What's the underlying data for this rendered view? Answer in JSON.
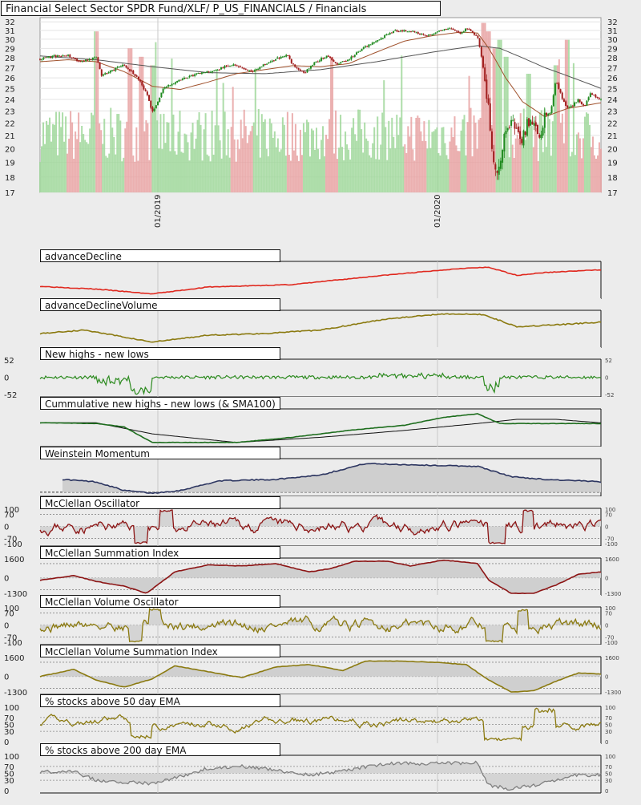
{
  "title": "Financial Select Sector SPDR Fund/XLF/ P_US_FINANCIALS / Financials",
  "colors": {
    "background": "#ececec",
    "up_candle": "#1f8a1f",
    "down_candle": "#a01d1d",
    "volume_up": "#9fd79a",
    "volume_down": "#e7a2a2",
    "sma_short": "#a0522d",
    "sma_long": "#555555",
    "ad_line": "#e0281e",
    "olive": "#8b7a10",
    "green": "#2b8a1e",
    "navy": "#2c3560",
    "dark_red": "#8c1414",
    "gray": "#808080"
  },
  "chart_data": [
    {
      "id": "price",
      "type": "candlestick",
      "title": "Financial Select Sector SPDR Fund/XLF/ P_US_FINANCIALS / Financials",
      "y_ticks": [
        "32",
        "31",
        "30",
        "29",
        "28",
        "27",
        "26",
        "25",
        "24",
        "23",
        "22",
        "21",
        "20",
        "19",
        "18",
        "17"
      ],
      "ylim": [
        17,
        32.5
      ],
      "scale": "log",
      "x_ticks": [
        "01/2019",
        "01/2020"
      ],
      "grid": true,
      "close_points": [
        {
          "x": 0.0,
          "y": 27.9
        },
        {
          "x": 0.03,
          "y": 28.2
        },
        {
          "x": 0.05,
          "y": 28.3
        },
        {
          "x": 0.07,
          "y": 27.5
        },
        {
          "x": 0.09,
          "y": 27.9
        },
        {
          "x": 0.1,
          "y": 28.1
        },
        {
          "x": 0.11,
          "y": 26.2
        },
        {
          "x": 0.13,
          "y": 26.8
        },
        {
          "x": 0.15,
          "y": 27.3
        },
        {
          "x": 0.17,
          "y": 26.2
        },
        {
          "x": 0.18,
          "y": 25.5
        },
        {
          "x": 0.19,
          "y": 24.5
        },
        {
          "x": 0.2,
          "y": 22.8
        },
        {
          "x": 0.21,
          "y": 23.8
        },
        {
          "x": 0.22,
          "y": 25.0
        },
        {
          "x": 0.24,
          "y": 25.6
        },
        {
          "x": 0.26,
          "y": 26.0
        },
        {
          "x": 0.28,
          "y": 26.4
        },
        {
          "x": 0.3,
          "y": 26.6
        },
        {
          "x": 0.32,
          "y": 26.9
        },
        {
          "x": 0.34,
          "y": 27.3
        },
        {
          "x": 0.36,
          "y": 27.0
        },
        {
          "x": 0.38,
          "y": 26.6
        },
        {
          "x": 0.4,
          "y": 27.3
        },
        {
          "x": 0.42,
          "y": 27.9
        },
        {
          "x": 0.44,
          "y": 28.3
        },
        {
          "x": 0.45,
          "y": 27.4
        },
        {
          "x": 0.47,
          "y": 26.4
        },
        {
          "x": 0.49,
          "y": 27.5
        },
        {
          "x": 0.51,
          "y": 28.2
        },
        {
          "x": 0.53,
          "y": 27.4
        },
        {
          "x": 0.55,
          "y": 27.8
        },
        {
          "x": 0.57,
          "y": 28.8
        },
        {
          "x": 0.59,
          "y": 29.5
        },
        {
          "x": 0.61,
          "y": 30.2
        },
        {
          "x": 0.63,
          "y": 30.9
        },
        {
          "x": 0.65,
          "y": 31.0
        },
        {
          "x": 0.67,
          "y": 30.8
        },
        {
          "x": 0.69,
          "y": 30.4
        },
        {
          "x": 0.71,
          "y": 30.9
        },
        {
          "x": 0.73,
          "y": 31.2
        },
        {
          "x": 0.75,
          "y": 30.6
        },
        {
          "x": 0.76,
          "y": 31.3
        },
        {
          "x": 0.78,
          "y": 30.3
        },
        {
          "x": 0.79,
          "y": 27.0
        },
        {
          "x": 0.8,
          "y": 23.0
        },
        {
          "x": 0.81,
          "y": 18.2
        },
        {
          "x": 0.82,
          "y": 19.2
        },
        {
          "x": 0.83,
          "y": 21.2
        },
        {
          "x": 0.84,
          "y": 22.3
        },
        {
          "x": 0.85,
          "y": 21.2
        },
        {
          "x": 0.86,
          "y": 20.8
        },
        {
          "x": 0.87,
          "y": 22.1
        },
        {
          "x": 0.88,
          "y": 22.2
        },
        {
          "x": 0.89,
          "y": 21.0
        },
        {
          "x": 0.9,
          "y": 22.5
        },
        {
          "x": 0.91,
          "y": 22.8
        },
        {
          "x": 0.92,
          "y": 25.8
        },
        {
          "x": 0.93,
          "y": 24.2
        },
        {
          "x": 0.94,
          "y": 23.2
        },
        {
          "x": 0.95,
          "y": 23.5
        },
        {
          "x": 0.96,
          "y": 24.0
        },
        {
          "x": 0.97,
          "y": 23.3
        },
        {
          "x": 0.98,
          "y": 24.5
        },
        {
          "x": 0.99,
          "y": 24.2
        },
        {
          "x": 1.0,
          "y": 24.0
        }
      ],
      "sma_short_points": [
        {
          "x": 0.0,
          "y": 27.6
        },
        {
          "x": 0.05,
          "y": 27.8
        },
        {
          "x": 0.1,
          "y": 27.6
        },
        {
          "x": 0.15,
          "y": 26.6
        },
        {
          "x": 0.2,
          "y": 25.2
        },
        {
          "x": 0.25,
          "y": 24.9
        },
        {
          "x": 0.3,
          "y": 25.6
        },
        {
          "x": 0.35,
          "y": 26.4
        },
        {
          "x": 0.4,
          "y": 26.8
        },
        {
          "x": 0.45,
          "y": 27.2
        },
        {
          "x": 0.5,
          "y": 27.1
        },
        {
          "x": 0.55,
          "y": 27.4
        },
        {
          "x": 0.6,
          "y": 28.6
        },
        {
          "x": 0.65,
          "y": 29.8
        },
        {
          "x": 0.7,
          "y": 30.4
        },
        {
          "x": 0.75,
          "y": 30.8
        },
        {
          "x": 0.78,
          "y": 30.7
        },
        {
          "x": 0.8,
          "y": 29.0
        },
        {
          "x": 0.83,
          "y": 26.0
        },
        {
          "x": 0.86,
          "y": 23.8
        },
        {
          "x": 0.9,
          "y": 22.5
        },
        {
          "x": 0.94,
          "y": 23.2
        },
        {
          "x": 1.0,
          "y": 23.7
        }
      ],
      "sma_long_points": [
        {
          "x": 0.0,
          "y": 28.2
        },
        {
          "x": 0.1,
          "y": 27.8
        },
        {
          "x": 0.2,
          "y": 27.1
        },
        {
          "x": 0.3,
          "y": 26.5
        },
        {
          "x": 0.4,
          "y": 26.4
        },
        {
          "x": 0.5,
          "y": 26.8
        },
        {
          "x": 0.6,
          "y": 27.6
        },
        {
          "x": 0.7,
          "y": 28.6
        },
        {
          "x": 0.78,
          "y": 29.3
        },
        {
          "x": 0.82,
          "y": 29.0
        },
        {
          "x": 0.86,
          "y": 28.0
        },
        {
          "x": 0.9,
          "y": 27.0
        },
        {
          "x": 0.95,
          "y": 26.0
        },
        {
          "x": 1.0,
          "y": 25.0
        }
      ],
      "volume_spikes": [
        {
          "x": 0.1,
          "h": 0.95
        },
        {
          "x": 0.16,
          "h": 0.85
        },
        {
          "x": 0.18,
          "h": 0.8
        },
        {
          "x": 0.2,
          "h": 0.75
        },
        {
          "x": 0.52,
          "h": 0.8
        },
        {
          "x": 0.79,
          "h": 1.0
        },
        {
          "x": 0.8,
          "h": 0.95
        },
        {
          "x": 0.81,
          "h": 0.85
        },
        {
          "x": 0.82,
          "h": 0.9
        },
        {
          "x": 0.83,
          "h": 0.8
        },
        {
          "x": 0.87,
          "h": 0.7
        },
        {
          "x": 0.92,
          "h": 0.75
        },
        {
          "x": 0.94,
          "h": 0.9
        }
      ]
    },
    {
      "id": "adl",
      "type": "line",
      "title": "advanceDecline",
      "color": "#e0281e",
      "ylim": [
        0,
        1
      ],
      "points": [
        {
          "x": 0,
          "y": 0.3
        },
        {
          "x": 0.1,
          "y": 0.22
        },
        {
          "x": 0.2,
          "y": 0.08
        },
        {
          "x": 0.3,
          "y": 0.28
        },
        {
          "x": 0.45,
          "y": 0.35
        },
        {
          "x": 0.6,
          "y": 0.6
        },
        {
          "x": 0.75,
          "y": 0.82
        },
        {
          "x": 0.8,
          "y": 0.85
        },
        {
          "x": 0.85,
          "y": 0.62
        },
        {
          "x": 0.9,
          "y": 0.7
        },
        {
          "x": 1.0,
          "y": 0.78
        }
      ]
    },
    {
      "id": "adv",
      "type": "line",
      "title": "advanceDeclineVolume",
      "color": "#8b7a10",
      "ylim": [
        0,
        1
      ],
      "points": [
        {
          "x": 0,
          "y": 0.35
        },
        {
          "x": 0.08,
          "y": 0.45
        },
        {
          "x": 0.2,
          "y": 0.1
        },
        {
          "x": 0.3,
          "y": 0.3
        },
        {
          "x": 0.4,
          "y": 0.35
        },
        {
          "x": 0.5,
          "y": 0.45
        },
        {
          "x": 0.62,
          "y": 0.78
        },
        {
          "x": 0.72,
          "y": 0.92
        },
        {
          "x": 0.79,
          "y": 0.9
        },
        {
          "x": 0.85,
          "y": 0.55
        },
        {
          "x": 0.92,
          "y": 0.6
        },
        {
          "x": 1.0,
          "y": 0.68
        }
      ]
    },
    {
      "id": "nhnl",
      "type": "line",
      "title": "New highs - new lows",
      "color": "#2b8a1e",
      "ylim": [
        -52,
        52
      ],
      "y_ticks_left": [
        "52",
        "0",
        "-52"
      ],
      "y_ticks_right": [
        "52",
        "0",
        "-52"
      ]
    },
    {
      "id": "cum",
      "type": "line",
      "title": "Cummulative new highs - new lows (& SMA100)",
      "color": "#1e6e1e",
      "sma_color": "#111111",
      "ylim": [
        0,
        1
      ],
      "points": [
        {
          "x": 0,
          "y": 0.62
        },
        {
          "x": 0.1,
          "y": 0.6
        },
        {
          "x": 0.15,
          "y": 0.5
        },
        {
          "x": 0.2,
          "y": 0.05
        },
        {
          "x": 0.35,
          "y": 0.05
        },
        {
          "x": 0.45,
          "y": 0.2
        },
        {
          "x": 0.55,
          "y": 0.4
        },
        {
          "x": 0.65,
          "y": 0.55
        },
        {
          "x": 0.72,
          "y": 0.78
        },
        {
          "x": 0.78,
          "y": 0.88
        },
        {
          "x": 0.82,
          "y": 0.6
        },
        {
          "x": 0.9,
          "y": 0.6
        },
        {
          "x": 1.0,
          "y": 0.6
        }
      ],
      "sma_points": [
        {
          "x": 0,
          "y": 0.62
        },
        {
          "x": 0.1,
          "y": 0.62
        },
        {
          "x": 0.2,
          "y": 0.3
        },
        {
          "x": 0.35,
          "y": 0.05
        },
        {
          "x": 0.5,
          "y": 0.2
        },
        {
          "x": 0.65,
          "y": 0.4
        },
        {
          "x": 0.78,
          "y": 0.6
        },
        {
          "x": 0.85,
          "y": 0.72
        },
        {
          "x": 0.92,
          "y": 0.72
        },
        {
          "x": 1.0,
          "y": 0.62
        }
      ]
    },
    {
      "id": "wm",
      "type": "area",
      "title": "Weinstein Momentum",
      "color": "#2c3560",
      "ylim": [
        0,
        1
      ],
      "points": [
        {
          "x": 0.04,
          "y": 0.42
        },
        {
          "x": 0.1,
          "y": 0.35
        },
        {
          "x": 0.15,
          "y": 0.1
        },
        {
          "x": 0.2,
          "y": 0.02
        },
        {
          "x": 0.25,
          "y": 0.1
        },
        {
          "x": 0.32,
          "y": 0.38
        },
        {
          "x": 0.42,
          "y": 0.42
        },
        {
          "x": 0.5,
          "y": 0.55
        },
        {
          "x": 0.58,
          "y": 0.88
        },
        {
          "x": 0.65,
          "y": 0.85
        },
        {
          "x": 0.72,
          "y": 0.82
        },
        {
          "x": 0.78,
          "y": 0.8
        },
        {
          "x": 0.84,
          "y": 0.5
        },
        {
          "x": 0.9,
          "y": 0.42
        },
        {
          "x": 0.96,
          "y": 0.38
        },
        {
          "x": 1.0,
          "y": 0.35
        }
      ]
    },
    {
      "id": "mco",
      "type": "line",
      "title": "McClellan Oscillator",
      "color": "#8c1414",
      "ylim": [
        -100,
        100
      ],
      "y_ticks_left": [
        "100",
        "70",
        "0",
        "-70",
        "-100"
      ],
      "y_ticks_right": [
        "100",
        "70",
        "0",
        "-70",
        "-100"
      ]
    },
    {
      "id": "msi",
      "type": "area",
      "title": "McClellan Summation Index",
      "color": "#8c1414",
      "ylim": [
        -1300,
        1600
      ],
      "y_ticks_left": [
        "1600",
        "0",
        "-1300"
      ],
      "y_ticks_right": [
        "1600",
        "0",
        "-1300"
      ],
      "points": [
        {
          "x": 0,
          "y": -200
        },
        {
          "x": 0.06,
          "y": 200
        },
        {
          "x": 0.1,
          "y": -300
        },
        {
          "x": 0.15,
          "y": -700
        },
        {
          "x": 0.19,
          "y": -1300
        },
        {
          "x": 0.24,
          "y": 500
        },
        {
          "x": 0.3,
          "y": 1100
        },
        {
          "x": 0.36,
          "y": 1000
        },
        {
          "x": 0.42,
          "y": 1200
        },
        {
          "x": 0.48,
          "y": 500
        },
        {
          "x": 0.52,
          "y": 800
        },
        {
          "x": 0.56,
          "y": 1400
        },
        {
          "x": 0.62,
          "y": 1400
        },
        {
          "x": 0.66,
          "y": 1000
        },
        {
          "x": 0.72,
          "y": 1500
        },
        {
          "x": 0.78,
          "y": 1200
        },
        {
          "x": 0.8,
          "y": -200
        },
        {
          "x": 0.84,
          "y": -1300
        },
        {
          "x": 0.88,
          "y": -1300
        },
        {
          "x": 0.92,
          "y": -600
        },
        {
          "x": 0.96,
          "y": 300
        },
        {
          "x": 1.0,
          "y": 500
        }
      ]
    },
    {
      "id": "mvo",
      "type": "line",
      "title": "McClellan Volume Oscillator",
      "color": "#8b7a10",
      "ylim": [
        -100,
        100
      ],
      "y_ticks_left": [
        "100",
        "70",
        "0",
        "-70",
        "-100"
      ],
      "y_ticks_right": [
        "100",
        "70",
        "0",
        "-70",
        "-100"
      ]
    },
    {
      "id": "mvsi",
      "type": "area",
      "title": "McClellan Volume Summation Index",
      "color": "#8b7a10",
      "ylim": [
        -1300,
        1600
      ],
      "y_ticks_left": [
        "1600",
        "0",
        "-1300"
      ],
      "y_ticks_right": [
        "1600",
        "0",
        "-1300"
      ],
      "points": [
        {
          "x": 0,
          "y": 0
        },
        {
          "x": 0.06,
          "y": 600
        },
        {
          "x": 0.1,
          "y": -300
        },
        {
          "x": 0.15,
          "y": -900
        },
        {
          "x": 0.2,
          "y": -200
        },
        {
          "x": 0.24,
          "y": 900
        },
        {
          "x": 0.3,
          "y": 400
        },
        {
          "x": 0.36,
          "y": -100
        },
        {
          "x": 0.42,
          "y": 800
        },
        {
          "x": 0.48,
          "y": 1000
        },
        {
          "x": 0.54,
          "y": 500
        },
        {
          "x": 0.58,
          "y": 1300
        },
        {
          "x": 0.64,
          "y": 1300
        },
        {
          "x": 0.7,
          "y": 1200
        },
        {
          "x": 0.76,
          "y": 1000
        },
        {
          "x": 0.8,
          "y": -300
        },
        {
          "x": 0.84,
          "y": -1300
        },
        {
          "x": 0.88,
          "y": -1200
        },
        {
          "x": 0.92,
          "y": -400
        },
        {
          "x": 0.96,
          "y": 300
        },
        {
          "x": 1.0,
          "y": 200
        }
      ]
    },
    {
      "id": "p50",
      "type": "line",
      "title": "% stocks above 50 day EMA",
      "color": "#8b7a10",
      "ylim": [
        0,
        100
      ],
      "y_ticks_left": [
        "100",
        "70",
        "50",
        "30",
        "0"
      ],
      "y_ticks_right": [
        "100",
        "70",
        "50",
        "30",
        "0"
      ]
    },
    {
      "id": "p200",
      "type": "area",
      "title": "% stocks above 200 day EMA",
      "color": "#808080",
      "ylim": [
        0,
        100
      ],
      "y_ticks_left": [
        "100",
        "70",
        "50",
        "30",
        "0"
      ],
      "y_ticks_right": [
        "100",
        "70",
        "50",
        "30",
        "0"
      ],
      "points": [
        {
          "x": 0,
          "y": 55
        },
        {
          "x": 0.06,
          "y": 55
        },
        {
          "x": 0.1,
          "y": 30
        },
        {
          "x": 0.15,
          "y": 25
        },
        {
          "x": 0.2,
          "y": 20
        },
        {
          "x": 0.25,
          "y": 40
        },
        {
          "x": 0.3,
          "y": 65
        },
        {
          "x": 0.36,
          "y": 70
        },
        {
          "x": 0.42,
          "y": 60
        },
        {
          "x": 0.48,
          "y": 45
        },
        {
          "x": 0.55,
          "y": 60
        },
        {
          "x": 0.62,
          "y": 80
        },
        {
          "x": 0.68,
          "y": 78
        },
        {
          "x": 0.74,
          "y": 80
        },
        {
          "x": 0.78,
          "y": 80
        },
        {
          "x": 0.8,
          "y": 15
        },
        {
          "x": 0.84,
          "y": 5
        },
        {
          "x": 0.88,
          "y": 15
        },
        {
          "x": 0.92,
          "y": 30
        },
        {
          "x": 0.95,
          "y": 45
        },
        {
          "x": 1.0,
          "y": 45
        }
      ]
    }
  ]
}
